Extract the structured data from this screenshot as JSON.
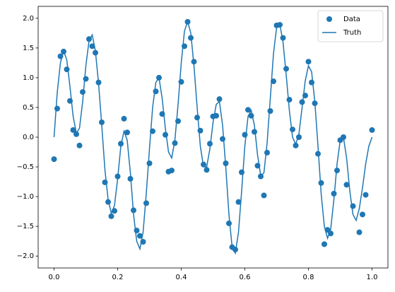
{
  "chart_data": {
    "type": "scatter",
    "xlim": [
      -0.05,
      1.05
    ],
    "ylim": [
      -2.2,
      2.2
    ],
    "xticks": [
      {
        "value": 0,
        "label": "0.0"
      },
      {
        "value": 0.2,
        "label": "0.2"
      },
      {
        "value": 0.4,
        "label": "0.4"
      },
      {
        "value": 0.6,
        "label": "0.6"
      },
      {
        "value": 0.8,
        "label": "0.8"
      },
      {
        "value": 1,
        "label": "1.0"
      }
    ],
    "yticks": [
      {
        "value": -2,
        "label": "−2.0"
      },
      {
        "value": -1.5,
        "label": "−1.5"
      },
      {
        "value": -1,
        "label": "−1.0"
      },
      {
        "value": -0.5,
        "label": "−0.5"
      },
      {
        "value": 0,
        "label": "0.0"
      },
      {
        "value": 0.5,
        "label": "0.5"
      },
      {
        "value": 1,
        "label": "1.0"
      },
      {
        "value": 1.5,
        "label": "1.5"
      },
      {
        "value": 2,
        "label": "2.0"
      }
    ],
    "legend": "upper right",
    "series": [
      {
        "name": "Data",
        "type": "scatter",
        "color": "#1f77b4",
        "x": [
          0,
          0.01,
          0.02,
          0.03,
          0.04,
          0.05,
          0.06,
          0.07,
          0.08,
          0.09,
          0.1,
          0.11,
          0.12,
          0.13,
          0.14,
          0.15,
          0.16,
          0.17,
          0.18,
          0.19,
          0.2,
          0.21,
          0.22,
          0.23,
          0.24,
          0.25,
          0.26,
          0.27,
          0.28,
          0.29,
          0.3,
          0.31,
          0.32,
          0.33,
          0.34,
          0.35,
          0.36,
          0.37,
          0.38,
          0.39,
          0.4,
          0.41,
          0.42,
          0.43,
          0.44,
          0.45,
          0.46,
          0.47,
          0.48,
          0.49,
          0.5,
          0.51,
          0.52,
          0.53,
          0.54,
          0.55,
          0.56,
          0.57,
          0.58,
          0.59,
          0.6,
          0.61,
          0.62,
          0.63,
          0.64,
          0.65,
          0.66,
          0.67,
          0.68,
          0.69,
          0.7,
          0.71,
          0.72,
          0.73,
          0.74,
          0.75,
          0.76,
          0.77,
          0.78,
          0.79,
          0.8,
          0.81,
          0.82,
          0.83,
          0.84,
          0.85,
          0.86,
          0.87,
          0.88,
          0.89,
          0.9,
          0.91,
          0.92,
          0.94,
          0.96,
          0.97,
          0.98,
          1
        ],
        "values": [
          -0.37,
          0.48,
          1.36,
          1.44,
          1.14,
          0.61,
          0.12,
          0.05,
          -0.14,
          0.76,
          0.98,
          1.65,
          1.53,
          1.42,
          0.92,
          0.25,
          -0.76,
          -1.09,
          -1.33,
          -1.24,
          -0.66,
          -0.11,
          0.31,
          0.08,
          -0.7,
          -1.23,
          -1.57,
          -1.66,
          -1.76,
          -1.11,
          -0.44,
          0.1,
          0.77,
          1,
          0.39,
          0.04,
          -0.58,
          -0.56,
          -0.1,
          0.27,
          0.93,
          1.53,
          1.94,
          1.67,
          1.27,
          0.33,
          0.11,
          -0.46,
          -0.55,
          -0.11,
          0.35,
          0.36,
          0.64,
          -0.03,
          -0.44,
          -1.45,
          -1.85,
          -1.89,
          -1.09,
          -0.59,
          0.04,
          0.46,
          0.36,
          0.09,
          -0.48,
          -0.66,
          -0.98,
          -0.26,
          0.44,
          0.94,
          1.88,
          1.89,
          1.67,
          1.15,
          0.63,
          0.13,
          -0.14,
          0,
          0.59,
          0.7,
          1.27,
          0.92,
          0.57,
          -0.28,
          -0.77,
          -1.8,
          -1.56,
          -1.62,
          -0.95,
          -0.56,
          -0.05,
          0,
          -0.8,
          -1.16,
          -1.6,
          -1.3,
          -0.97,
          0.12
        ]
      },
      {
        "name": "Truth",
        "type": "line",
        "color": "#1f77b4",
        "x": [
          0,
          0.01,
          0.02,
          0.03,
          0.04,
          0.05,
          0.06,
          0.07,
          0.08,
          0.09,
          0.1,
          0.11,
          0.12,
          0.13,
          0.14,
          0.15,
          0.16,
          0.17,
          0.18,
          0.19,
          0.2,
          0.21,
          0.22,
          0.23,
          0.24,
          0.25,
          0.26,
          0.27,
          0.28,
          0.29,
          0.3,
          0.31,
          0.32,
          0.33,
          0.34,
          0.35,
          0.36,
          0.37,
          0.38,
          0.39,
          0.4,
          0.41,
          0.42,
          0.43,
          0.44,
          0.45,
          0.46,
          0.47,
          0.48,
          0.49,
          0.5,
          0.51,
          0.52,
          0.53,
          0.54,
          0.55,
          0.56,
          0.57,
          0.58,
          0.59,
          0.6,
          0.61,
          0.62,
          0.63,
          0.64,
          0.65,
          0.66,
          0.67,
          0.68,
          0.69,
          0.7,
          0.71,
          0.72,
          0.73,
          0.74,
          0.75,
          0.76,
          0.77,
          0.78,
          0.79,
          0.8,
          0.81,
          0.82,
          0.83,
          0.84,
          0.85,
          0.86,
          0.87,
          0.88,
          0.89,
          0.9,
          0.91,
          0.92,
          0.93,
          0.94,
          0.95,
          0.96,
          0.97,
          0.98,
          0.99,
          1
        ],
        "values": [
          0,
          0.75,
          1.25,
          1.45,
          1.3,
          0.85,
          0.35,
          0.07,
          0.15,
          0.6,
          1.2,
          1.62,
          1.72,
          1.45,
          0.9,
          0.2,
          -0.55,
          -1.05,
          -1.28,
          -1.15,
          -0.7,
          -0.15,
          0.1,
          -0.05,
          -0.6,
          -1.3,
          -1.75,
          -1.88,
          -1.6,
          -0.95,
          -0.2,
          0.5,
          0.92,
          1,
          0.65,
          0.15,
          -0.25,
          -0.35,
          -0.05,
          0.55,
          1.25,
          1.78,
          1.95,
          1.75,
          1.2,
          0.5,
          -0.15,
          -0.5,
          -0.5,
          -0.2,
          0.25,
          0.55,
          0.6,
          0.2,
          -0.5,
          -1.3,
          -1.85,
          -1.95,
          -1.6,
          -0.9,
          -0.15,
          0.35,
          0.45,
          0.2,
          -0.3,
          -0.65,
          -0.6,
          -0.1,
          0.65,
          1.4,
          1.85,
          1.9,
          1.6,
          1.05,
          0.45,
          0,
          -0.12,
          0.05,
          0.5,
          0.95,
          1.2,
          1.1,
          0.6,
          -0.15,
          -0.95,
          -1.5,
          -1.7,
          -1.55,
          -1.05,
          -0.45,
          -0.05,
          0,
          -0.35,
          -0.9,
          -1.3,
          -1.4,
          -1.2,
          -0.85,
          -0.45,
          -0.15,
          0
        ]
      }
    ]
  }
}
